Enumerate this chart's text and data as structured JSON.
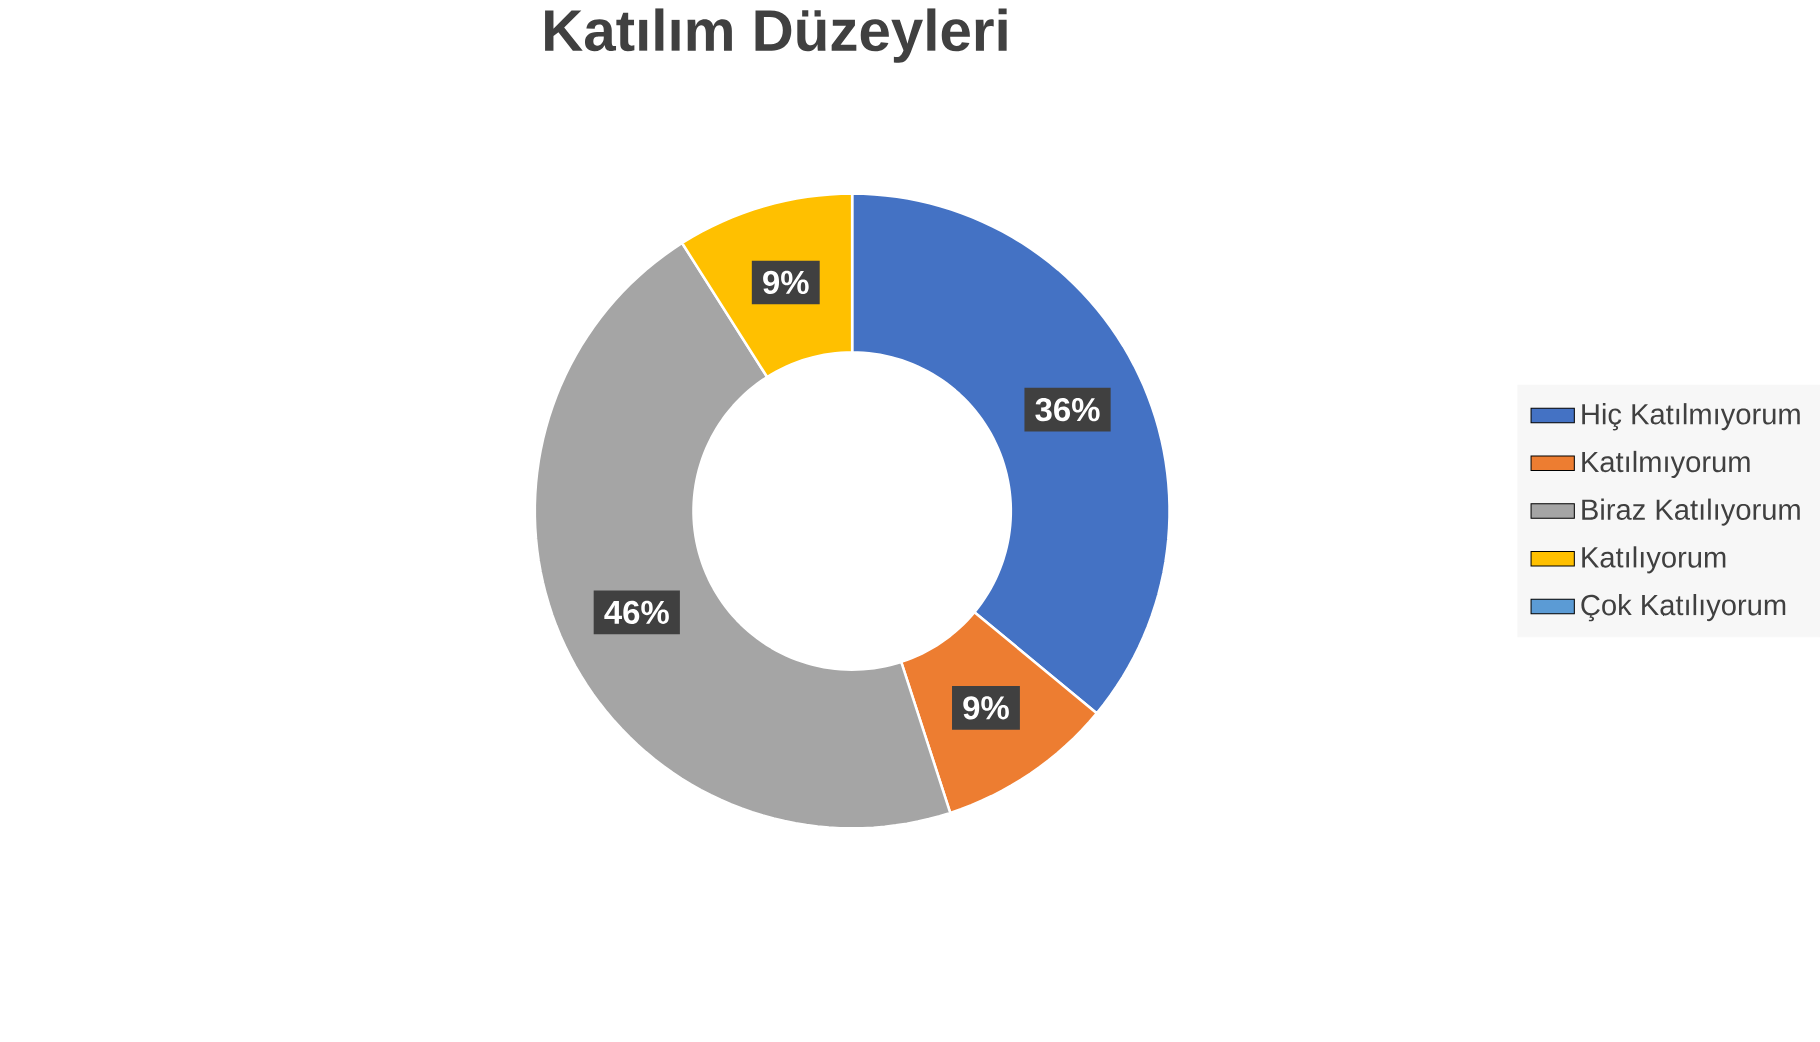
{
  "chart_data": {
    "type": "donut",
    "title": "Katılım Düzeyleri",
    "categories": [
      "Hiç Katılmıyorum",
      "Katılmıyorum",
      "Biraz Katılıyorum",
      "Katılıyorum",
      "Çok Katılıyorum"
    ],
    "values": [
      36,
      9,
      46,
      9,
      0
    ],
    "colors": [
      "#4472c4",
      "#ed7d31",
      "#a5a5a5",
      "#ffc000",
      "#5b9bd5"
    ],
    "value_labels": [
      "36%",
      "9%",
      "46%",
      "9%",
      null
    ],
    "legend": "right"
  }
}
